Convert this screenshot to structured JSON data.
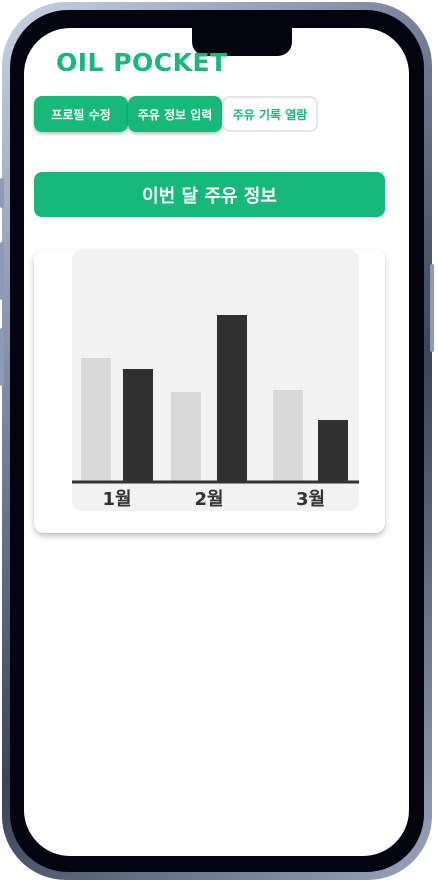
{
  "app": {
    "title": "OIL POCKET"
  },
  "tabs": [
    {
      "label": "프로필 수정"
    },
    {
      "label": "주유 정보 입력"
    },
    {
      "label": "주유 기록 열람"
    }
  ],
  "section": {
    "title": "이번 달 주유 정보"
  },
  "colors": {
    "accent": "#16b979",
    "bar_light": "#d9d9d9",
    "bar_dark": "#303030",
    "panel": "#f2f2f2"
  },
  "chart_data": {
    "type": "bar",
    "categories": [
      "1월",
      "2월",
      "3월"
    ],
    "series": [
      {
        "values": [
          124,
          90,
          92
        ]
      },
      {
        "values": [
          113,
          167,
          62
        ]
      }
    ],
    "title": "",
    "xlabel": "",
    "ylabel": "",
    "ylim": [
      0,
      230
    ],
    "grid": false,
    "legend": "none"
  }
}
